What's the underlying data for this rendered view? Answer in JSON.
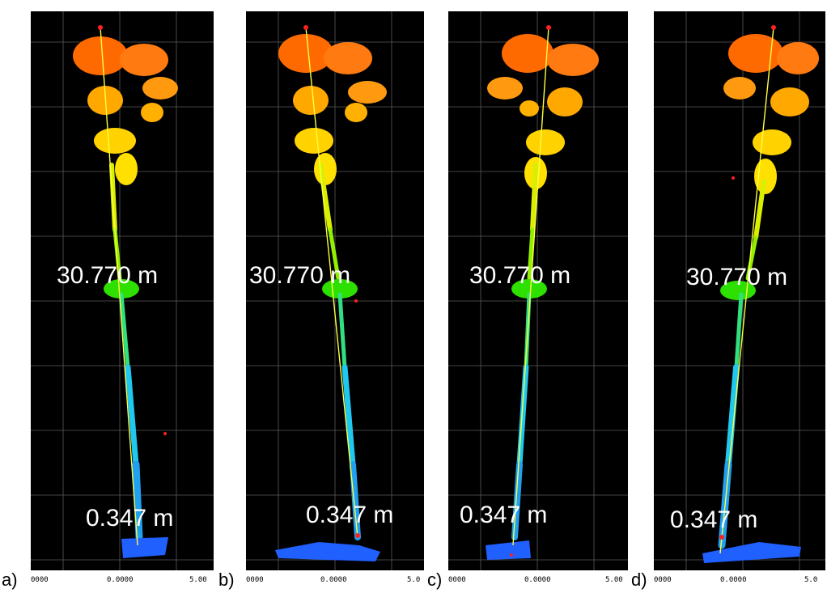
{
  "panels": [
    {
      "label": "a)",
      "top_measure": "30.770 m",
      "bottom_measure": "0.347 m",
      "axis_left": "0000",
      "axis_mid": "0.0000",
      "axis_right": "5.00"
    },
    {
      "label": "b)",
      "top_measure": "30.770 m",
      "bottom_measure": "0.347 m",
      "axis_left": "0000",
      "axis_mid": "0.0000",
      "axis_right": "5.0"
    },
    {
      "label": "c)",
      "top_measure": "30.770 m",
      "bottom_measure": "0.347 m",
      "axis_left": "0000",
      "axis_mid": "0.0000",
      "axis_right": "5.00"
    },
    {
      "label": "d)",
      "top_measure": "30.770 m",
      "bottom_measure": "0.347 m",
      "axis_left": "0000",
      "axis_mid": "0.0000",
      "axis_right": "5.0"
    }
  ],
  "colors": {
    "background": "#000000",
    "grid": "#5a5a5a",
    "crown": "#ff6a00",
    "mid_crown": "#ffd200",
    "stem_upper": "#b8f000",
    "stem_mid": "#2ee000",
    "stem_lower": "#20c8f0",
    "base": "#2060ff",
    "measure_line": "#ffff40",
    "marker": "#ff2020"
  }
}
